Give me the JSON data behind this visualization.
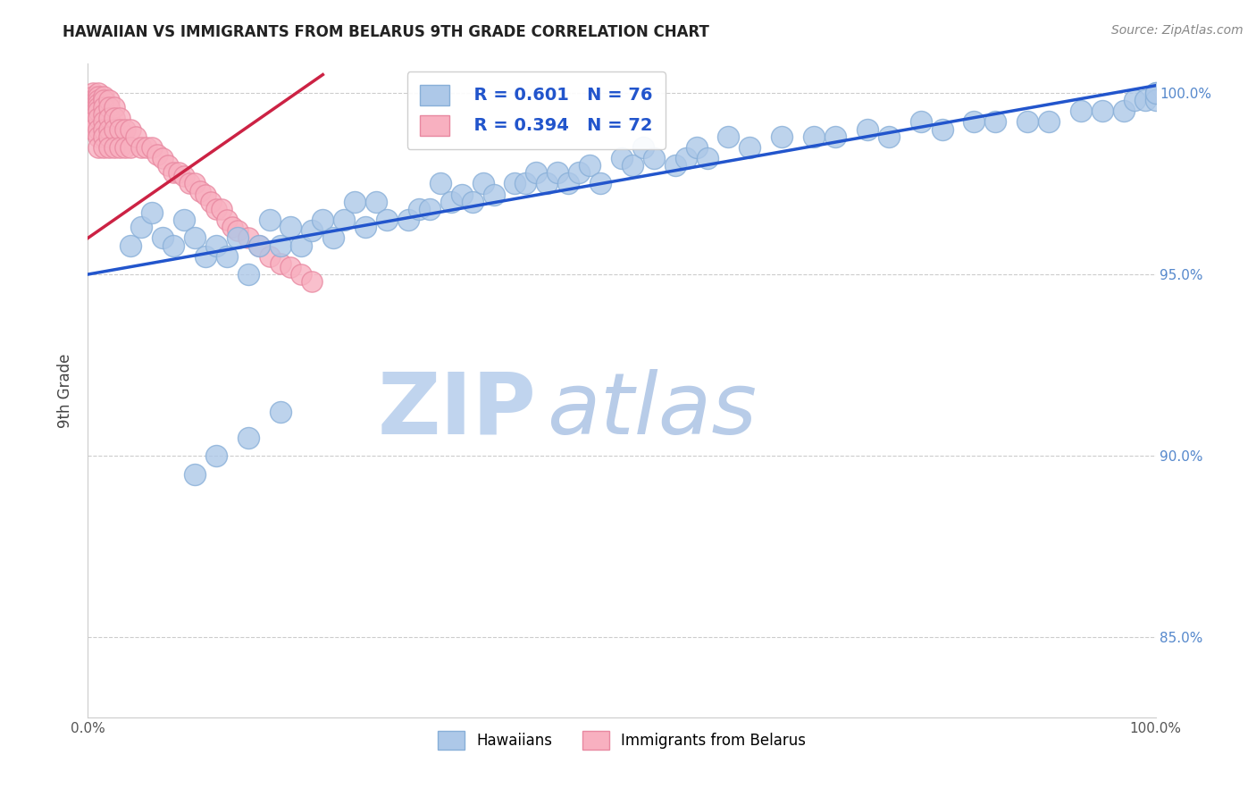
{
  "title": "HAWAIIAN VS IMMIGRANTS FROM BELARUS 9TH GRADE CORRELATION CHART",
  "source_text": "Source: ZipAtlas.com",
  "ylabel": "9th Grade",
  "xlim": [
    0.0,
    1.0
  ],
  "ylim": [
    0.828,
    1.008
  ],
  "y_ticks": [
    0.85,
    0.9,
    0.95,
    1.0
  ],
  "y_tick_labels": [
    "85.0%",
    "90.0%",
    "95.0%",
    "100.0%"
  ],
  "grid_color": "#cccccc",
  "background_color": "#ffffff",
  "hawaiians_color": "#adc8e8",
  "hawaii_edge_color": "#88afd8",
  "belarus_color": "#f8b0c0",
  "belarus_edge_color": "#e888a0",
  "hawaii_trend_color": "#2255cc",
  "belarus_trend_color": "#cc2244",
  "R_hawaii": 0.601,
  "N_hawaii": 76,
  "R_belarus": 0.394,
  "N_belarus": 72,
  "legend_R_color": "#2255cc",
  "watermark_zip": "ZIP",
  "watermark_atlas": "atlas",
  "watermark_color_zip": "#c0d4ee",
  "watermark_color_atlas": "#b8cce8",
  "hawaii_trend_x0": 0.0,
  "hawaii_trend_y0": 0.95,
  "hawaii_trend_x1": 1.0,
  "hawaii_trend_y1": 1.002,
  "belarus_trend_x0": 0.0,
  "belarus_trend_y0": 0.96,
  "belarus_trend_x1": 0.22,
  "belarus_trend_y1": 1.005,
  "hawaii_x": [
    0.04,
    0.05,
    0.06,
    0.07,
    0.08,
    0.09,
    0.1,
    0.11,
    0.12,
    0.13,
    0.14,
    0.15,
    0.16,
    0.17,
    0.18,
    0.19,
    0.2,
    0.21,
    0.22,
    0.23,
    0.24,
    0.25,
    0.26,
    0.27,
    0.28,
    0.3,
    0.31,
    0.32,
    0.33,
    0.34,
    0.35,
    0.36,
    0.37,
    0.38,
    0.4,
    0.41,
    0.42,
    0.43,
    0.44,
    0.45,
    0.46,
    0.47,
    0.48,
    0.5,
    0.51,
    0.52,
    0.53,
    0.55,
    0.56,
    0.57,
    0.58,
    0.6,
    0.62,
    0.65,
    0.68,
    0.7,
    0.73,
    0.75,
    0.78,
    0.8,
    0.83,
    0.85,
    0.88,
    0.9,
    0.93,
    0.95,
    0.97,
    0.98,
    0.99,
    1.0,
    1.0,
    1.0,
    0.1,
    0.12,
    0.15,
    0.18
  ],
  "hawaii_y": [
    0.958,
    0.963,
    0.967,
    0.96,
    0.958,
    0.965,
    0.96,
    0.955,
    0.958,
    0.955,
    0.96,
    0.95,
    0.958,
    0.965,
    0.958,
    0.963,
    0.958,
    0.962,
    0.965,
    0.96,
    0.965,
    0.97,
    0.963,
    0.97,
    0.965,
    0.965,
    0.968,
    0.968,
    0.975,
    0.97,
    0.972,
    0.97,
    0.975,
    0.972,
    0.975,
    0.975,
    0.978,
    0.975,
    0.978,
    0.975,
    0.978,
    0.98,
    0.975,
    0.982,
    0.98,
    0.985,
    0.982,
    0.98,
    0.982,
    0.985,
    0.982,
    0.988,
    0.985,
    0.988,
    0.988,
    0.988,
    0.99,
    0.988,
    0.992,
    0.99,
    0.992,
    0.992,
    0.992,
    0.992,
    0.995,
    0.995,
    0.995,
    0.998,
    0.998,
    1.0,
    0.998,
    1.0,
    0.895,
    0.9,
    0.905,
    0.912
  ],
  "belarus_x": [
    0.005,
    0.005,
    0.005,
    0.005,
    0.005,
    0.005,
    0.005,
    0.005,
    0.005,
    0.005,
    0.01,
    0.01,
    0.01,
    0.01,
    0.01,
    0.01,
    0.01,
    0.01,
    0.01,
    0.01,
    0.015,
    0.015,
    0.015,
    0.015,
    0.015,
    0.015,
    0.015,
    0.015,
    0.02,
    0.02,
    0.02,
    0.02,
    0.02,
    0.02,
    0.025,
    0.025,
    0.025,
    0.025,
    0.03,
    0.03,
    0.03,
    0.035,
    0.035,
    0.04,
    0.04,
    0.045,
    0.05,
    0.055,
    0.06,
    0.065,
    0.07,
    0.075,
    0.08,
    0.085,
    0.09,
    0.095,
    0.1,
    0.105,
    0.11,
    0.115,
    0.12,
    0.125,
    0.13,
    0.135,
    0.14,
    0.15,
    0.16,
    0.17,
    0.18,
    0.19,
    0.2,
    0.21
  ],
  "belarus_y": [
    1.0,
    0.999,
    0.998,
    0.997,
    0.996,
    0.995,
    0.994,
    0.993,
    0.992,
    0.99,
    1.0,
    0.999,
    0.998,
    0.997,
    0.996,
    0.995,
    0.993,
    0.99,
    0.988,
    0.985,
    0.999,
    0.998,
    0.996,
    0.994,
    0.992,
    0.99,
    0.988,
    0.985,
    0.998,
    0.996,
    0.993,
    0.99,
    0.988,
    0.985,
    0.996,
    0.993,
    0.99,
    0.985,
    0.993,
    0.99,
    0.985,
    0.99,
    0.985,
    0.99,
    0.985,
    0.988,
    0.985,
    0.985,
    0.985,
    0.983,
    0.982,
    0.98,
    0.978,
    0.978,
    0.977,
    0.975,
    0.975,
    0.973,
    0.972,
    0.97,
    0.968,
    0.968,
    0.965,
    0.963,
    0.962,
    0.96,
    0.958,
    0.955,
    0.953,
    0.952,
    0.95,
    0.948
  ]
}
